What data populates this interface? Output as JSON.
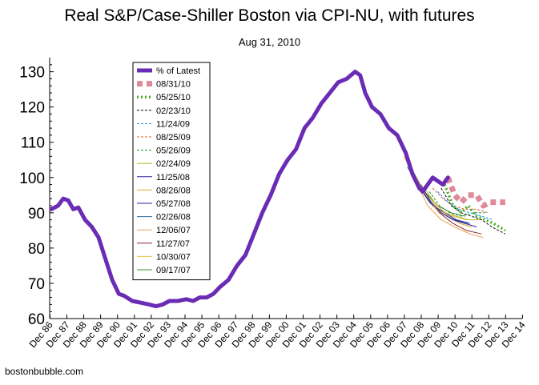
{
  "chart_data": {
    "type": "line",
    "title": "Real S&P/Case-Shiller Boston via CPI-NU, with futures",
    "subtitle": "Aug 31, 2010",
    "footer": "bostonbubble.com",
    "xlabel": "",
    "ylabel": "",
    "ylim": [
      60,
      134
    ],
    "xlim": [
      1986.9,
      2014.9
    ],
    "yticks": [
      60,
      70,
      80,
      90,
      100,
      110,
      120,
      130
    ],
    "xtick_labels": [
      "Dec 86",
      "Dec 87",
      "Dec 88",
      "Dec 89",
      "Dec 90",
      "Dec 91",
      "Dec 92",
      "Dec 93",
      "Dec 94",
      "Dec 95",
      "Dec 96",
      "Dec 97",
      "Dec 98",
      "Dec 99",
      "Dec 00",
      "Dec 01",
      "Dec 02",
      "Dec 03",
      "Dec 04",
      "Dec 05",
      "Dec 06",
      "Dec 07",
      "Dec 08",
      "Dec 09",
      "Dec 10",
      "Dec 11",
      "Dec 12",
      "Dec 13",
      "Dec 14"
    ],
    "xtick_values": [
      1986.92,
      1987.92,
      1988.92,
      1989.92,
      1990.92,
      1991.92,
      1992.92,
      1993.92,
      1994.92,
      1995.92,
      1996.92,
      1997.92,
      1998.92,
      1999.92,
      2000.92,
      2001.92,
      2002.92,
      2003.92,
      2004.92,
      2005.92,
      2006.92,
      2007.92,
      2008.92,
      2009.92,
      2010.92,
      2011.92,
      2012.92,
      2013.92,
      2014.92
    ],
    "grid": false,
    "legend_position": "top-left",
    "series": [
      {
        "name": "% of Latest",
        "color": "#6a2cb5",
        "style": "thick",
        "x": [
          1987.0,
          1987.4,
          1987.7,
          1988.0,
          1988.3,
          1988.6,
          1989.0,
          1989.4,
          1989.8,
          1990.2,
          1990.6,
          1991.0,
          1991.3,
          1991.8,
          1992.3,
          1992.8,
          1993.2,
          1993.6,
          1994.0,
          1994.5,
          1995.0,
          1995.4,
          1995.8,
          1996.2,
          1996.6,
          1997.0,
          1997.5,
          1998.0,
          1998.5,
          1999.0,
          1999.5,
          2000.0,
          2000.5,
          2001.0,
          2001.5,
          2002.0,
          2002.5,
          2003.0,
          2003.5,
          2004.0,
          2004.5,
          2005.0,
          2005.3,
          2005.6,
          2006.0,
          2006.5,
          2007.0,
          2007.5,
          2008.0,
          2008.4,
          2008.8,
          2009.0,
          2009.3,
          2009.6,
          2009.9,
          2010.2,
          2010.5
        ],
        "y": [
          91,
          92,
          94,
          93.5,
          91,
          91.5,
          88,
          86,
          83,
          77,
          71,
          67,
          66.5,
          65,
          64.5,
          64,
          63.5,
          64,
          65,
          65,
          65.5,
          65,
          66,
          66,
          67,
          69,
          71,
          75,
          78,
          84,
          90,
          95,
          101,
          105,
          108,
          114,
          117,
          121,
          124,
          127,
          128,
          130,
          129,
          124,
          120,
          118,
          114,
          112,
          107,
          101,
          97,
          96,
          98,
          100,
          99,
          98,
          100
        ]
      },
      {
        "name": "08/31/10",
        "color": "#e08a99",
        "style": "dashed-thick",
        "x": [
          2010.5,
          2010.9,
          2011.3,
          2011.7,
          2012.2,
          2012.6,
          2013.0,
          2013.5,
          2013.9
        ],
        "y": [
          100,
          95,
          93,
          95,
          95,
          92,
          93,
          93,
          93
        ]
      },
      {
        "name": "05/25/10",
        "color": "#4caf2a",
        "style": "dotted-thick",
        "x": [
          2010.3,
          2010.8,
          2011.3,
          2011.7,
          2012.2,
          2012.7,
          2013.2,
          2013.9
        ],
        "y": [
          98,
          92,
          90,
          92,
          89,
          88,
          87,
          85
        ]
      },
      {
        "name": "02/23/10",
        "color": "#000000",
        "style": "dashed",
        "x": [
          2010.1,
          2010.7,
          2011.3,
          2011.9,
          2012.5,
          2013.1,
          2013.9
        ],
        "y": [
          97,
          92,
          90,
          89,
          88,
          86,
          84
        ]
      },
      {
        "name": "11/24/09",
        "color": "#1e90ff",
        "style": "dashed",
        "x": [
          2009.9,
          2010.5,
          2011.1,
          2011.8,
          2012.5,
          2013.2
        ],
        "y": [
          96,
          93,
          91,
          90,
          89,
          88
        ]
      },
      {
        "name": "08/25/09",
        "color": "#e0602a",
        "style": "dashed",
        "x": [
          2009.6,
          2010.2,
          2010.8,
          2011.5,
          2012.2,
          2012.9
        ],
        "y": [
          97,
          94,
          92,
          91,
          91,
          90
        ]
      },
      {
        "name": "05/26/09",
        "color": "#2e8b2e",
        "style": "dashed",
        "x": [
          2009.4,
          2010.0,
          2010.6,
          2011.3,
          2012.0,
          2012.7
        ],
        "y": [
          96,
          92,
          90,
          89,
          90,
          90
        ]
      },
      {
        "name": "02/24/09",
        "color": "#b5b52a",
        "style": "solid",
        "x": [
          2009.1,
          2009.7,
          2010.3,
          2011.0,
          2011.7,
          2012.4
        ],
        "y": [
          97,
          93,
          90,
          89,
          88,
          88
        ]
      },
      {
        "name": "11/25/08",
        "color": "#3a1f9e",
        "style": "solid",
        "x": [
          2008.9,
          2009.5,
          2010.1,
          2010.8,
          2011.5,
          2012.2
        ],
        "y": [
          98,
          93,
          90,
          88,
          87,
          86
        ]
      },
      {
        "name": "08/26/08",
        "color": "#e0a52a",
        "style": "solid",
        "x": [
          2008.6,
          2009.2,
          2009.8,
          2010.5,
          2011.2,
          2011.9
        ],
        "y": [
          100,
          95,
          91,
          89,
          87,
          86
        ]
      },
      {
        "name": "05/27/08",
        "color": "#1f2a9e",
        "style": "solid",
        "x": [
          2008.4,
          2009.0,
          2009.6,
          2010.3,
          2011.0,
          2011.8
        ],
        "y": [
          101,
          96,
          92,
          90,
          88,
          87
        ]
      },
      {
        "name": "02/26/08",
        "color": "#2a6ea5",
        "style": "solid",
        "x": [
          2008.1,
          2008.7,
          2009.4,
          2010.1,
          2010.9,
          2011.7
        ],
        "y": [
          103,
          98,
          93,
          90,
          88,
          87
        ]
      },
      {
        "name": "12/06/07",
        "color": "#f0a050",
        "style": "solid",
        "x": [
          2007.9,
          2008.6,
          2009.3,
          2010.1,
          2010.9,
          2011.8,
          2012.6
        ],
        "y": [
          106,
          99,
          92,
          88,
          86,
          84,
          83
        ]
      },
      {
        "name": "11/27/07",
        "color": "#8b2a2a",
        "style": "solid",
        "x": [
          2007.9,
          2008.6,
          2009.3,
          2010.0,
          2010.8,
          2011.6,
          2012.5
        ],
        "y": [
          107,
          100,
          94,
          90,
          87,
          85,
          84
        ]
      },
      {
        "name": "10/30/07",
        "color": "#f0c040",
        "style": "solid",
        "x": [
          2007.8,
          2008.5,
          2009.2,
          2010.0,
          2010.8,
          2011.6
        ],
        "y": [
          108,
          101,
          95,
          91,
          89,
          88
        ]
      },
      {
        "name": "09/17/07",
        "color": "#3a8b3a",
        "style": "solid",
        "x": [
          2007.7,
          2008.4,
          2009.1,
          2009.9,
          2010.7,
          2011.5
        ],
        "y": [
          109,
          102,
          96,
          92,
          90,
          89
        ]
      }
    ]
  }
}
